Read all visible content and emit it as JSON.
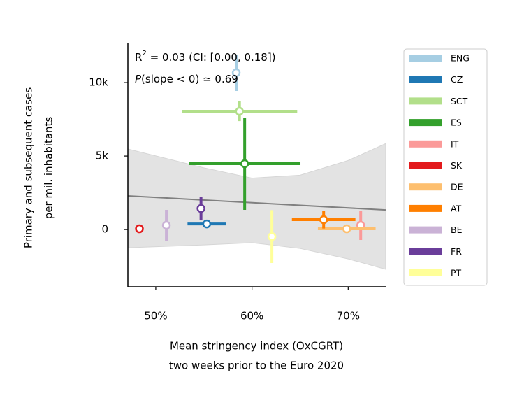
{
  "chart_data": {
    "type": "scatter",
    "x_label": [
      "Mean stringency index (OxCGRT)",
      "two weeks prior to the Euro 2020"
    ],
    "y_label": [
      "Primary and subsequent cases",
      "per mil. inhabitants"
    ],
    "annotations": [
      [
        "R",
        "2",
        " = 0.03 (CI: [0.00, 0.18])"
      ],
      [
        "P",
        "(slope < 0) ≃ 0.69"
      ]
    ],
    "xlim": [
      47.1,
      73.9
    ],
    "ylim": [
      -3900,
      12670
    ],
    "xticks": [
      {
        "value": 50,
        "label": "50%"
      },
      {
        "value": 60,
        "label": "60%"
      },
      {
        "value": 70,
        "label": "70%"
      }
    ],
    "yticks": [
      0,
      {
        "value": 5000,
        "label": "5k"
      },
      {
        "value": 10000,
        "label": "10k"
      }
    ],
    "fit": {
      "color": "#808080",
      "x": [
        47.1,
        73.9
      ],
      "values": [
        2290,
        1330
      ]
    },
    "ci": {
      "color": "#e3e3e3",
      "x": [
        47.1,
        55,
        60,
        65,
        70,
        73.9
      ],
      "upper": [
        5480,
        4200,
        3500,
        3700,
        4700,
        5850
      ],
      "lower": [
        -1240,
        -1050,
        -900,
        -1290,
        -2000,
        -2710
      ]
    },
    "series": [
      {
        "name": "ENG",
        "color": "#a6cee3",
        "x": [
          58.36
        ],
        "values": [
          10670
        ],
        "xerr": [
          0.3
        ],
        "yerr": [
          1240
        ]
      },
      {
        "name": "CZ",
        "color": "#1f78b4",
        "x": [
          55.3
        ],
        "values": [
          380
        ],
        "xerr": [
          2.0
        ],
        "yerr": [
          150
        ]
      },
      {
        "name": "SCT",
        "color": "#b2df8a",
        "x": [
          58.7
        ],
        "values": [
          8050
        ],
        "xerr": [
          6.0
        ],
        "yerr": [
          670
        ]
      },
      {
        "name": "ES",
        "color": "#33a02c",
        "x": [
          59.24
        ],
        "values": [
          4480
        ],
        "xerr": [
          5.8
        ],
        "yerr": [
          3140
        ]
      },
      {
        "name": "IT",
        "color": "#fb9a99",
        "x": [
          71.3
        ],
        "values": [
          290
        ],
        "xerr": [
          0.1
        ],
        "yerr": [
          1000
        ]
      },
      {
        "name": "SK",
        "color": "#e31a1c",
        "x": [
          48.3
        ],
        "values": [
          50
        ],
        "xerr": [
          0
        ],
        "yerr": [
          0
        ]
      },
      {
        "name": "DE",
        "color": "#fdbf6f",
        "x": [
          69.85
        ],
        "values": [
          50
        ],
        "xerr": [
          3.0
        ],
        "yerr": [
          100
        ]
      },
      {
        "name": "AT",
        "color": "#ff7f00",
        "x": [
          67.45
        ],
        "values": [
          670
        ],
        "xerr": [
          3.3
        ],
        "yerr": [
          600
        ]
      },
      {
        "name": "BE",
        "color": "#cab2d6",
        "x": [
          51.1
        ],
        "values": [
          290
        ],
        "xerr": [
          0.1
        ],
        "yerr": [
          1050
        ]
      },
      {
        "name": "FR",
        "color": "#6a3d9a",
        "x": [
          54.7
        ],
        "values": [
          1430
        ],
        "xerr": [
          0.1
        ],
        "yerr": [
          800
        ]
      },
      {
        "name": "PT",
        "color": "#ffff99",
        "x": [
          62.07
        ],
        "values": [
          -480
        ],
        "xerr": [
          0.1
        ],
        "yerr": [
          1800
        ]
      }
    ]
  }
}
